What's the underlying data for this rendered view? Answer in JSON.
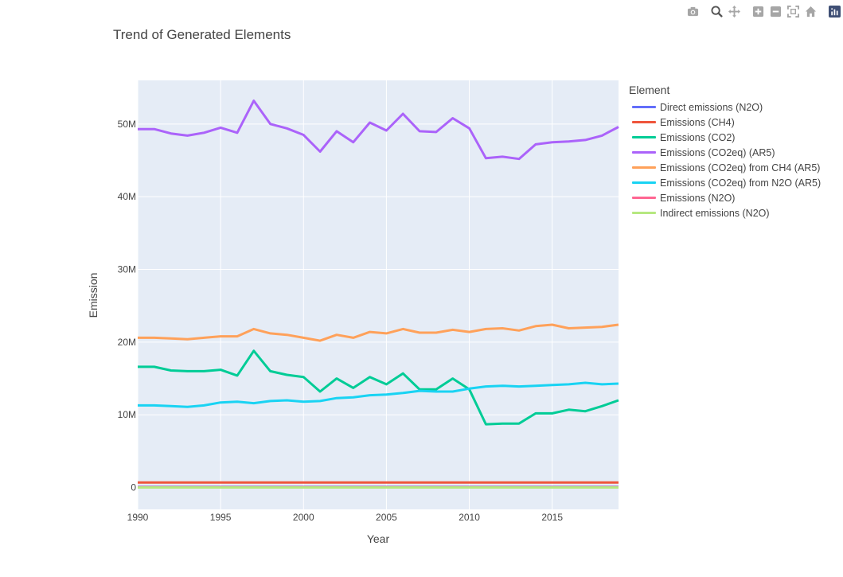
{
  "modebar": {
    "buttons": [
      {
        "icon": "camera-icon"
      },
      {
        "icon": "zoom-icon"
      },
      {
        "icon": "pan-icon"
      },
      {
        "icon": "zoom-in-icon"
      },
      {
        "icon": "zoom-out-icon"
      },
      {
        "icon": "autoscale-icon"
      },
      {
        "icon": "reset-axes-icon"
      },
      {
        "icon": "plotly-logo-icon"
      }
    ]
  },
  "chart_data": {
    "type": "line",
    "title": "Trend of Generated Elements",
    "xlabel": "Year",
    "ylabel": "Emission",
    "legend_title": "Element",
    "legend_position": "right",
    "grid": true,
    "xlim": [
      1990,
      2019
    ],
    "ylim": [
      -3000000,
      56000000
    ],
    "x_ticks": [
      1990,
      1995,
      2000,
      2005,
      2010,
      2015
    ],
    "y_ticks": [
      0,
      10000000,
      20000000,
      30000000,
      40000000,
      50000000
    ],
    "y_tick_labels": [
      "0",
      "10M",
      "20M",
      "30M",
      "40M",
      "50M"
    ],
    "x": [
      1990,
      1991,
      1992,
      1993,
      1994,
      1995,
      1996,
      1997,
      1998,
      1999,
      2000,
      2001,
      2002,
      2003,
      2004,
      2005,
      2006,
      2007,
      2008,
      2009,
      2010,
      2011,
      2012,
      2013,
      2014,
      2015,
      2016,
      2017,
      2018,
      2019
    ],
    "series": [
      {
        "name": "Direct emissions (N2O)",
        "color": "#636efa",
        "values": [
          100000,
          100000,
          100000,
          100000,
          100000,
          100000,
          100000,
          100000,
          100000,
          100000,
          100000,
          100000,
          100000,
          100000,
          100000,
          100000,
          100000,
          100000,
          100000,
          100000,
          100000,
          100000,
          100000,
          100000,
          100000,
          100000,
          100000,
          100000,
          100000,
          100000
        ]
      },
      {
        "name": "Emissions (CH4)",
        "color": "#EF553B",
        "values": [
          700000,
          700000,
          700000,
          700000,
          700000,
          700000,
          700000,
          700000,
          700000,
          700000,
          700000,
          700000,
          700000,
          700000,
          700000,
          700000,
          700000,
          700000,
          700000,
          700000,
          700000,
          700000,
          700000,
          700000,
          700000,
          700000,
          700000,
          700000,
          700000,
          700000
        ]
      },
      {
        "name": "Emissions (CO2)",
        "color": "#00cc96",
        "values": [
          16600000,
          16600000,
          16100000,
          16000000,
          16000000,
          16200000,
          15400000,
          18800000,
          16000000,
          15500000,
          15200000,
          13200000,
          15000000,
          13700000,
          15200000,
          14200000,
          15700000,
          13500000,
          13500000,
          15000000,
          13500000,
          8700000,
          8800000,
          8800000,
          10200000,
          10200000,
          10700000,
          10500000,
          11200000,
          12000000
        ]
      },
      {
        "name": "Emissions (CO2eq) (AR5)",
        "color": "#ab63fa",
        "values": [
          49300000,
          49300000,
          48700000,
          48400000,
          48800000,
          49500000,
          48800000,
          53200000,
          50000000,
          49400000,
          48500000,
          46200000,
          49000000,
          47500000,
          50200000,
          49100000,
          51400000,
          49000000,
          48900000,
          50800000,
          49400000,
          45300000,
          45500000,
          45200000,
          47200000,
          47500000,
          47600000,
          47800000,
          48400000,
          49600000
        ]
      },
      {
        "name": "Emissions (CO2eq) from CH4 (AR5)",
        "color": "#FFA15A",
        "values": [
          20600000,
          20600000,
          20500000,
          20400000,
          20600000,
          20800000,
          20800000,
          21800000,
          21200000,
          21000000,
          20600000,
          20200000,
          21000000,
          20600000,
          21400000,
          21200000,
          21800000,
          21300000,
          21300000,
          21700000,
          21400000,
          21800000,
          21900000,
          21600000,
          22200000,
          22400000,
          21900000,
          22000000,
          22100000,
          22400000
        ]
      },
      {
        "name": "Emissions (CO2eq) from N2O (AR5)",
        "color": "#19d3f3",
        "values": [
          11300000,
          11300000,
          11200000,
          11100000,
          11300000,
          11700000,
          11800000,
          11600000,
          11900000,
          12000000,
          11800000,
          11900000,
          12300000,
          12400000,
          12700000,
          12800000,
          13000000,
          13300000,
          13200000,
          13200000,
          13600000,
          13900000,
          14000000,
          13900000,
          14000000,
          14100000,
          14200000,
          14400000,
          14200000,
          14300000
        ]
      },
      {
        "name": "Emissions (N2O)",
        "color": "#FF6692",
        "values": [
          50000,
          50000,
          50000,
          50000,
          50000,
          50000,
          50000,
          50000,
          50000,
          50000,
          50000,
          50000,
          50000,
          50000,
          50000,
          50000,
          50000,
          50000,
          50000,
          50000,
          50000,
          50000,
          50000,
          50000,
          50000,
          50000,
          50000,
          50000,
          50000,
          50000
        ]
      },
      {
        "name": "Indirect emissions (N2O)",
        "color": "#B6E880",
        "values": [
          10000,
          10000,
          10000,
          10000,
          10000,
          10000,
          10000,
          10000,
          10000,
          10000,
          10000,
          10000,
          10000,
          10000,
          10000,
          10000,
          10000,
          10000,
          10000,
          10000,
          10000,
          10000,
          10000,
          10000,
          10000,
          10000,
          10000,
          10000,
          10000,
          10000
        ]
      }
    ]
  }
}
